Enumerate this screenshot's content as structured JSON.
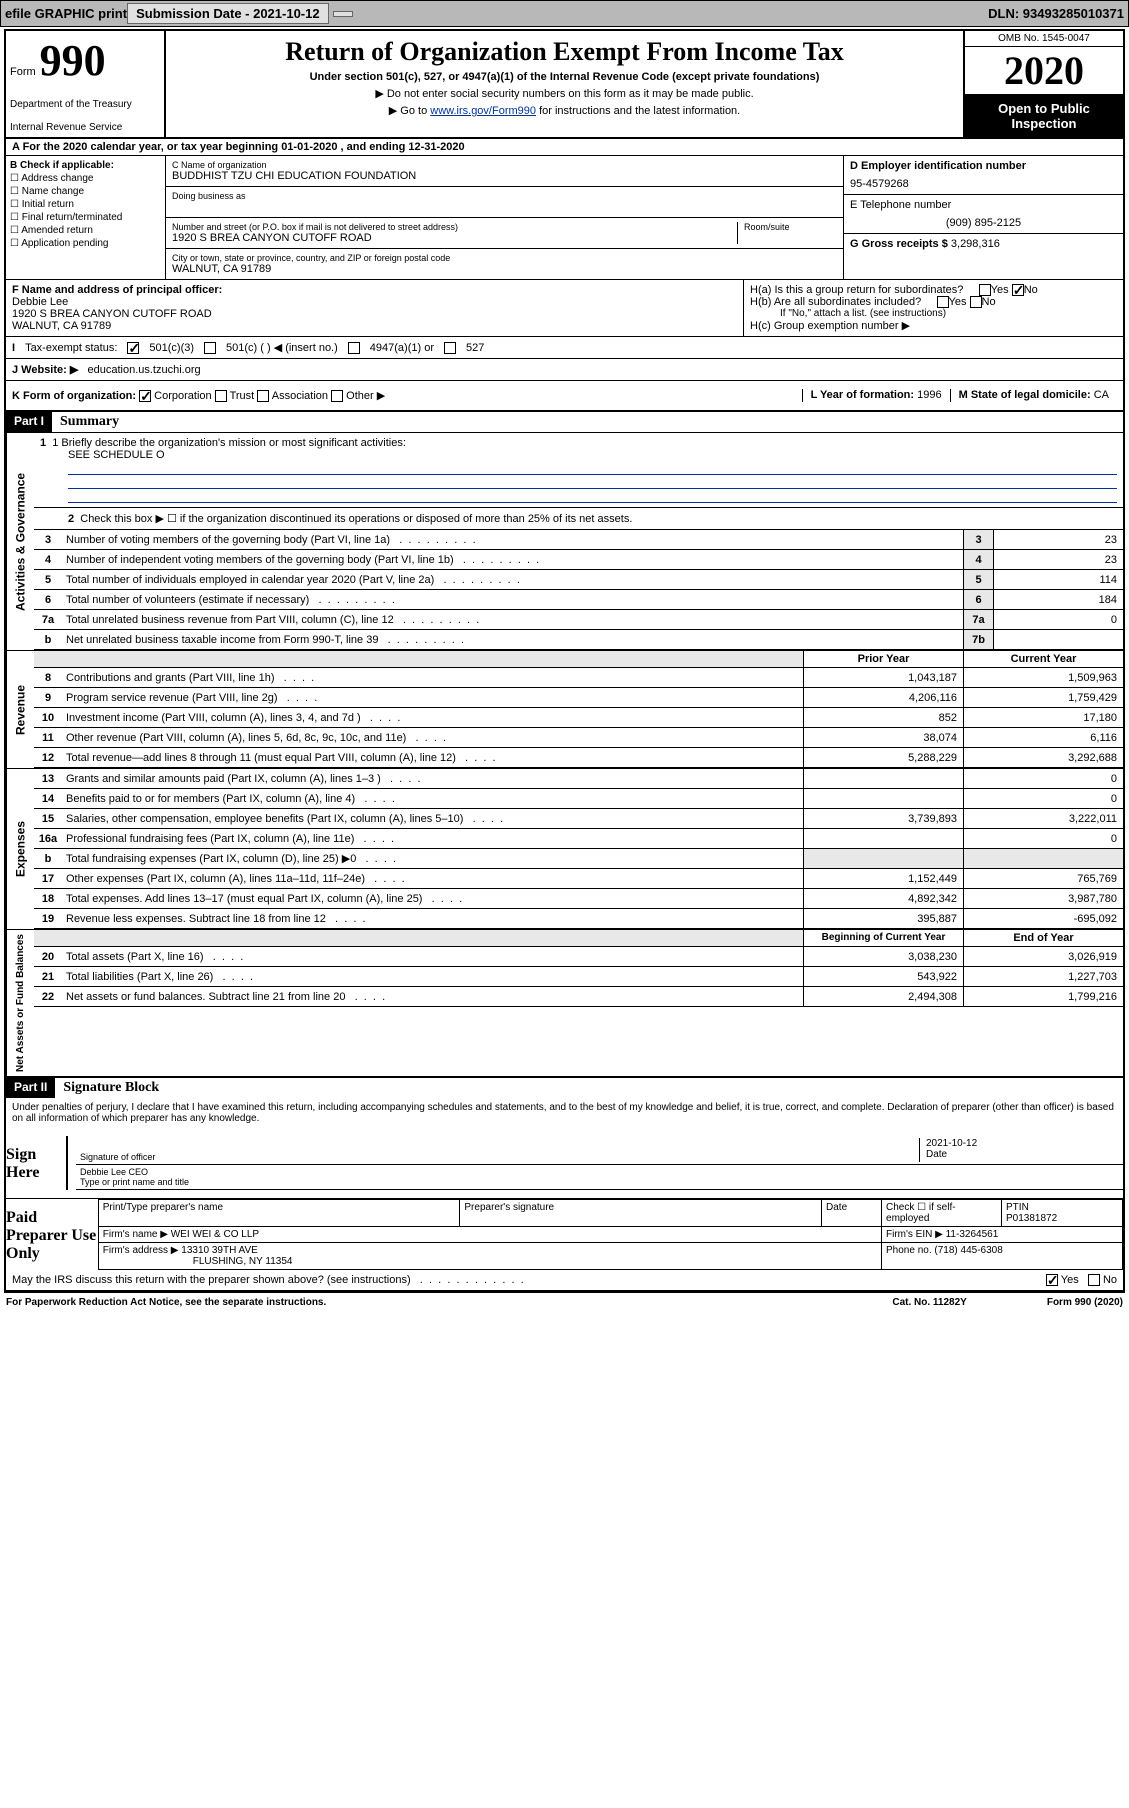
{
  "topbar": {
    "efile": "efile GRAPHIC print",
    "submission": "Submission Date - 2021-10-12",
    "dln": "DLN: 93493285010371"
  },
  "header": {
    "form_label": "Form",
    "form_number": "990",
    "dept1": "Department of the Treasury",
    "dept2": "Internal Revenue Service",
    "title": "Return of Organization Exempt From Income Tax",
    "subtitle": "Under section 501(c), 527, or 4947(a)(1) of the Internal Revenue Code (except private foundations)",
    "note1": "▶ Do not enter social security numbers on this form as it may be made public.",
    "note2_pre": "▶ Go to ",
    "note2_link": "www.irs.gov/Form990",
    "note2_post": " for instructions and the latest information.",
    "omb": "OMB No. 1545-0047",
    "year": "2020",
    "open": "Open to Public Inspection"
  },
  "rowA": "A For the 2020 calendar year, or tax year beginning 01-01-2020    , and ending 12-31-2020",
  "colB": {
    "title": "B Check if applicable:",
    "items": [
      "Address change",
      "Name change",
      "Initial return",
      "Final return/terminated",
      "Amended return",
      "Application pending"
    ]
  },
  "colC": {
    "name_lbl": "C Name of organization",
    "name": "BUDDHIST TZU CHI EDUCATION FOUNDATION",
    "dba_lbl": "Doing business as",
    "addr_lbl": "Number and street (or P.O. box if mail is not delivered to street address)",
    "room_lbl": "Room/suite",
    "addr": "1920 S BREA CANYON CUTOFF ROAD",
    "city_lbl": "City or town, state or province, country, and ZIP or foreign postal code",
    "city": "WALNUT, CA  91789"
  },
  "colD": {
    "ein_lbl": "D Employer identification number",
    "ein": "95-4579268",
    "tel_lbl": "E Telephone number",
    "tel": "(909) 895-2125",
    "gross_lbl": "G Gross receipts $",
    "gross": "3,298,316"
  },
  "rowF": {
    "f_lbl": "F Name and address of principal officer:",
    "f_name": "Debbie Lee",
    "f_addr1": "1920 S BREA CANYON CUTOFF ROAD",
    "f_addr2": "WALNUT, CA  91789",
    "ha": "H(a)  Is this a group return for subordinates?",
    "hb": "H(b)  Are all subordinates included?",
    "hb_note": "If \"No,\" attach a list. (see instructions)",
    "hc": "H(c)  Group exemption number ▶",
    "yes": "Yes",
    "no": "No"
  },
  "rowI": {
    "lbl": "Tax-exempt status:",
    "opt1": "501(c)(3)",
    "opt2": "501(c) (  ) ◀ (insert no.)",
    "opt3": "4947(a)(1) or",
    "opt4": "527"
  },
  "rowJ": {
    "lbl": "J Website: ▶",
    "val": "education.us.tzuchi.org"
  },
  "rowK": {
    "lbl": "K Form of organization:",
    "opts": [
      "Corporation",
      "Trust",
      "Association",
      "Other ▶"
    ],
    "year_lbl": "L Year of formation:",
    "year": "1996",
    "state_lbl": "M State of legal domicile:",
    "state": "CA"
  },
  "part1": {
    "hdr": "Part I",
    "title": "Summary",
    "mission_lbl": "1  Briefly describe the organization's mission or most significant activities:",
    "mission": "SEE SCHEDULE O",
    "line2": "Check this box ▶ ☐ if the organization discontinued its operations or disposed of more than 25% of its net assets.",
    "sections": {
      "gov": "Activities & Governance",
      "rev": "Revenue",
      "exp": "Expenses",
      "net": "Net Assets or Fund Balances"
    },
    "gov_lines": [
      {
        "n": "3",
        "t": "Number of voting members of the governing body (Part VI, line 1a)",
        "b": "3",
        "v": "23"
      },
      {
        "n": "4",
        "t": "Number of independent voting members of the governing body (Part VI, line 1b)",
        "b": "4",
        "v": "23"
      },
      {
        "n": "5",
        "t": "Total number of individuals employed in calendar year 2020 (Part V, line 2a)",
        "b": "5",
        "v": "114"
      },
      {
        "n": "6",
        "t": "Total number of volunteers (estimate if necessary)",
        "b": "6",
        "v": "184"
      },
      {
        "n": "7a",
        "t": "Total unrelated business revenue from Part VIII, column (C), line 12",
        "b": "7a",
        "v": "0"
      },
      {
        "n": "b",
        "t": "Net unrelated business taxable income from Form 990-T, line 39",
        "b": "7b",
        "v": ""
      }
    ],
    "col_hdr1": "Prior Year",
    "col_hdr2": "Current Year",
    "rev_lines": [
      {
        "n": "8",
        "t": "Contributions and grants (Part VIII, line 1h)",
        "v1": "1,043,187",
        "v2": "1,509,963"
      },
      {
        "n": "9",
        "t": "Program service revenue (Part VIII, line 2g)",
        "v1": "4,206,116",
        "v2": "1,759,429"
      },
      {
        "n": "10",
        "t": "Investment income (Part VIII, column (A), lines 3, 4, and 7d )",
        "v1": "852",
        "v2": "17,180"
      },
      {
        "n": "11",
        "t": "Other revenue (Part VIII, column (A), lines 5, 6d, 8c, 9c, 10c, and 11e)",
        "v1": "38,074",
        "v2": "6,116"
      },
      {
        "n": "12",
        "t": "Total revenue—add lines 8 through 11 (must equal Part VIII, column (A), line 12)",
        "v1": "5,288,229",
        "v2": "3,292,688"
      }
    ],
    "exp_lines": [
      {
        "n": "13",
        "t": "Grants and similar amounts paid (Part IX, column (A), lines 1–3 )",
        "v1": "",
        "v2": "0"
      },
      {
        "n": "14",
        "t": "Benefits paid to or for members (Part IX, column (A), line 4)",
        "v1": "",
        "v2": "0"
      },
      {
        "n": "15",
        "t": "Salaries, other compensation, employee benefits (Part IX, column (A), lines 5–10)",
        "v1": "3,739,893",
        "v2": "3,222,011"
      },
      {
        "n": "16a",
        "t": "Professional fundraising fees (Part IX, column (A), line 11e)",
        "v1": "",
        "v2": "0"
      },
      {
        "n": "b",
        "t": "Total fundraising expenses (Part IX, column (D), line 25) ▶0",
        "v1": "shade",
        "v2": "shade"
      },
      {
        "n": "17",
        "t": "Other expenses (Part IX, column (A), lines 11a–11d, 11f–24e)",
        "v1": "1,152,449",
        "v2": "765,769"
      },
      {
        "n": "18",
        "t": "Total expenses. Add lines 13–17 (must equal Part IX, column (A), line 25)",
        "v1": "4,892,342",
        "v2": "3,987,780"
      },
      {
        "n": "19",
        "t": "Revenue less expenses. Subtract line 18 from line 12",
        "v1": "395,887",
        "v2": "-695,092"
      }
    ],
    "net_hdr1": "Beginning of Current Year",
    "net_hdr2": "End of Year",
    "net_lines": [
      {
        "n": "20",
        "t": "Total assets (Part X, line 16)",
        "v1": "3,038,230",
        "v2": "3,026,919"
      },
      {
        "n": "21",
        "t": "Total liabilities (Part X, line 26)",
        "v1": "543,922",
        "v2": "1,227,703"
      },
      {
        "n": "22",
        "t": "Net assets or fund balances. Subtract line 21 from line 20",
        "v1": "2,494,308",
        "v2": "1,799,216"
      }
    ]
  },
  "part2": {
    "hdr": "Part II",
    "title": "Signature Block",
    "perjury": "Under penalties of perjury, I declare that I have examined this return, including accompanying schedules and statements, and to the best of my knowledge and belief, it is true, correct, and complete. Declaration of preparer (other than officer) is based on all information of which preparer has any knowledge.",
    "sign_here": "Sign Here",
    "sig_officer": "Signature of officer",
    "sig_date_lbl": "Date",
    "sig_date": "2021-10-12",
    "name_title": "Debbie Lee  CEO",
    "name_title_lbl": "Type or print name and title",
    "paid_prep": "Paid Preparer Use Only",
    "pt_name_lbl": "Print/Type preparer's name",
    "pt_sig_lbl": "Preparer's signature",
    "pt_date_lbl": "Date",
    "pt_check_lbl": "Check ☐ if self-employed",
    "ptin_lbl": "PTIN",
    "ptin": "P01381872",
    "firm_name_lbl": "Firm's name    ▶",
    "firm_name": "WEI WEI & CO LLP",
    "firm_ein_lbl": "Firm's EIN ▶",
    "firm_ein": "11-3264561",
    "firm_addr_lbl": "Firm's address ▶",
    "firm_addr1": "13310 39TH AVE",
    "firm_addr2": "FLUSHING, NY  11354",
    "phone_lbl": "Phone no.",
    "phone": "(718) 445-6308",
    "may": "May the IRS discuss this return with the preparer shown above? (see instructions)",
    "yes": "Yes",
    "no": "No"
  },
  "footer": {
    "paperwork": "For Paperwork Reduction Act Notice, see the separate instructions.",
    "cat": "Cat. No. 11282Y",
    "form": "Form 990 (2020)"
  }
}
